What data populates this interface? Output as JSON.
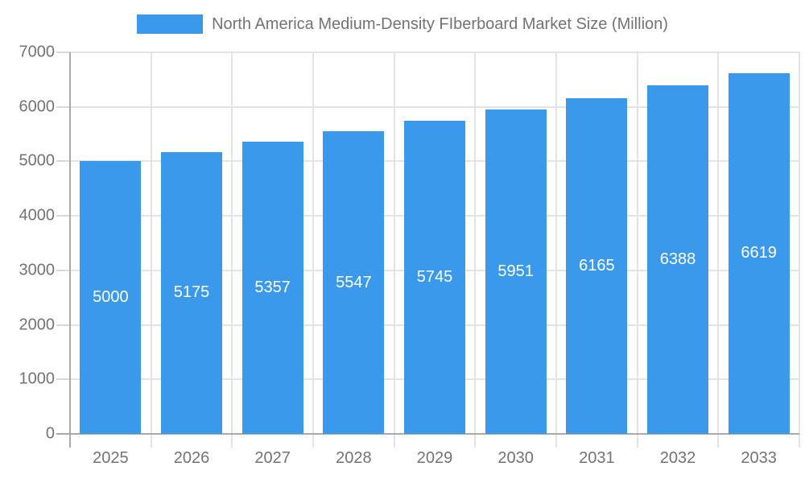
{
  "legend": {
    "label": "North America Medium-Density FIberboard Market Size (Million)"
  },
  "chart_data": {
    "type": "bar",
    "title": "North America Medium-Density FIberboard Market Size (Million)",
    "categories": [
      "2025",
      "2026",
      "2027",
      "2028",
      "2029",
      "2030",
      "2031",
      "2032",
      "2033"
    ],
    "values": [
      5000,
      5175,
      5357,
      5547,
      5745,
      5951,
      6165,
      6388,
      6619
    ],
    "value_labels": [
      "5000",
      "5175",
      "5357",
      "5547",
      "5745",
      "5951",
      "6165",
      "6388",
      "6619"
    ],
    "xlabel": "",
    "ylabel": "",
    "ylim": [
      0,
      7000
    ],
    "yticks": [
      0,
      1000,
      2000,
      3000,
      4000,
      5000,
      6000,
      7000
    ],
    "grid": true,
    "legend_position": "top",
    "value_label_position": "inside-center"
  },
  "colors": {
    "bar": "#3B99EC",
    "grid": "#E3E3E3",
    "axis": "#AAAAAA",
    "tick": "#D9D9D9",
    "text": "#737373",
    "value_label": "#FFFFFF",
    "background": "#FFFFFF"
  }
}
